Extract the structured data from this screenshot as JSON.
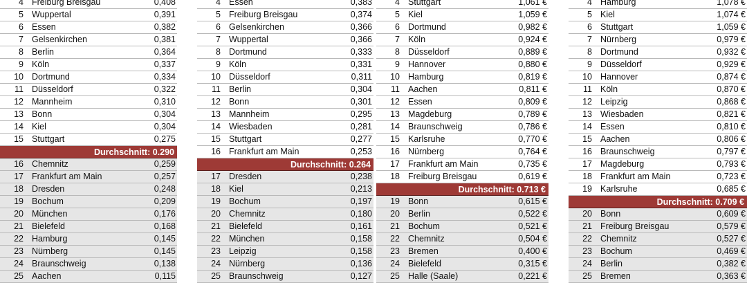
{
  "colors": {
    "average_bar": "#9e3a36",
    "below_average_row": "#e6e6e6",
    "divider": "#b9b9b9"
  },
  "tables": [
    {
      "average_label": "Durchschnitt: 0.290",
      "average_after_index": 11,
      "rows": [
        {
          "rank": "4",
          "name": "Freiburg Breisgau",
          "value": "0,408"
        },
        {
          "rank": "5",
          "name": "Wuppertal",
          "value": "0,391"
        },
        {
          "rank": "6",
          "name": "Essen",
          "value": "0,382"
        },
        {
          "rank": "7",
          "name": "Gelsenkirchen",
          "value": "0,381"
        },
        {
          "rank": "8",
          "name": "Berlin",
          "value": "0,364"
        },
        {
          "rank": "9",
          "name": "Köln",
          "value": "0,337"
        },
        {
          "rank": "10",
          "name": "Dortmund",
          "value": "0,334"
        },
        {
          "rank": "11",
          "name": "Düsseldorf",
          "value": "0,322"
        },
        {
          "rank": "12",
          "name": "Mannheim",
          "value": "0,310"
        },
        {
          "rank": "13",
          "name": "Bonn",
          "value": "0,304"
        },
        {
          "rank": "14",
          "name": "Kiel",
          "value": "0,304"
        },
        {
          "rank": "15",
          "name": "Stuttgart",
          "value": "0,275"
        },
        {
          "rank": "16",
          "name": "Chemnitz",
          "value": "0,259"
        },
        {
          "rank": "17",
          "name": "Frankfurt am Main",
          "value": "0,257"
        },
        {
          "rank": "18",
          "name": "Dresden",
          "value": "0,248"
        },
        {
          "rank": "19",
          "name": "Bochum",
          "value": "0,209"
        },
        {
          "rank": "20",
          "name": "München",
          "value": "0,176"
        },
        {
          "rank": "21",
          "name": "Bielefeld",
          "value": "0,168"
        },
        {
          "rank": "22",
          "name": "Hamburg",
          "value": "0,145"
        },
        {
          "rank": "23",
          "name": "Nürnberg",
          "value": "0,145"
        },
        {
          "rank": "24",
          "name": "Braunschweig",
          "value": "0,138"
        },
        {
          "rank": "25",
          "name": "Aachen",
          "value": "0,115"
        }
      ]
    },
    {
      "average_label": "Durchschnitt: 0.264",
      "average_after_index": 12,
      "rows": [
        {
          "rank": "4",
          "name": "Essen",
          "value": "0,383"
        },
        {
          "rank": "5",
          "name": "Freiburg Breisgau",
          "value": "0,374"
        },
        {
          "rank": "6",
          "name": "Gelsenkirchen",
          "value": "0,366"
        },
        {
          "rank": "7",
          "name": "Wuppertal",
          "value": "0,366"
        },
        {
          "rank": "8",
          "name": "Dortmund",
          "value": "0,333"
        },
        {
          "rank": "9",
          "name": "Köln",
          "value": "0,331"
        },
        {
          "rank": "10",
          "name": "Düsseldorf",
          "value": "0,311"
        },
        {
          "rank": "11",
          "name": "Berlin",
          "value": "0,304"
        },
        {
          "rank": "12",
          "name": "Bonn",
          "value": "0,301"
        },
        {
          "rank": "13",
          "name": "Mannheim",
          "value": "0,295"
        },
        {
          "rank": "14",
          "name": "Wiesbaden",
          "value": "0,281"
        },
        {
          "rank": "15",
          "name": "Stuttgart",
          "value": "0,277"
        },
        {
          "rank": "16",
          "name": "Frankfurt am Main",
          "value": "0,253"
        },
        {
          "rank": "17",
          "name": "Dresden",
          "value": "0,238"
        },
        {
          "rank": "18",
          "name": "Kiel",
          "value": "0,213"
        },
        {
          "rank": "19",
          "name": "Bochum",
          "value": "0,197"
        },
        {
          "rank": "20",
          "name": "Chemnitz",
          "value": "0,180"
        },
        {
          "rank": "21",
          "name": "Bielefeld",
          "value": "0,161"
        },
        {
          "rank": "22",
          "name": "München",
          "value": "0,158"
        },
        {
          "rank": "23",
          "name": "Leipzig",
          "value": "0,158"
        },
        {
          "rank": "24",
          "name": "Nürnberg",
          "value": "0,136"
        },
        {
          "rank": "25",
          "name": "Braunschweig",
          "value": "0,127"
        }
      ]
    },
    {
      "average_label": "Durchschnitt: 0.713 €",
      "average_after_index": 14,
      "rows": [
        {
          "rank": "4",
          "name": "Stuttgart",
          "value": "1,061 €"
        },
        {
          "rank": "5",
          "name": "Kiel",
          "value": "1,059 €"
        },
        {
          "rank": "6",
          "name": "Dortmund",
          "value": "0,982 €"
        },
        {
          "rank": "7",
          "name": "Köln",
          "value": "0,924 €"
        },
        {
          "rank": "8",
          "name": "Düsseldorf",
          "value": "0,889 €"
        },
        {
          "rank": "9",
          "name": "Hannover",
          "value": "0,880 €"
        },
        {
          "rank": "10",
          "name": "Hamburg",
          "value": "0,819 €"
        },
        {
          "rank": "11",
          "name": "Aachen",
          "value": "0,811 €"
        },
        {
          "rank": "12",
          "name": "Essen",
          "value": "0,809 €"
        },
        {
          "rank": "13",
          "name": "Magdeburg",
          "value": "0,789 €"
        },
        {
          "rank": "14",
          "name": "Braunschweig",
          "value": "0,786 €"
        },
        {
          "rank": "15",
          "name": "Karlsruhe",
          "value": "0,770 €"
        },
        {
          "rank": "16",
          "name": "Nürnberg",
          "value": "0,764 €"
        },
        {
          "rank": "17",
          "name": "Frankfurt am Main",
          "value": "0,735 €"
        },
        {
          "rank": "18",
          "name": "Freiburg Breisgau",
          "value": "0,619 €"
        },
        {
          "rank": "19",
          "name": "Bonn",
          "value": "0,615 €"
        },
        {
          "rank": "20",
          "name": "Berlin",
          "value": "0,522 €"
        },
        {
          "rank": "21",
          "name": "Bochum",
          "value": "0,521 €"
        },
        {
          "rank": "22",
          "name": "Chemnitz",
          "value": "0,504 €"
        },
        {
          "rank": "23",
          "name": "Bremen",
          "value": "0,400 €"
        },
        {
          "rank": "24",
          "name": "Bielefeld",
          "value": "0,315 €"
        },
        {
          "rank": "25",
          "name": "Halle (Saale)",
          "value": "0,221 €"
        }
      ]
    },
    {
      "average_label": "Durchschnitt: 0.709 €",
      "average_after_index": 15,
      "rows": [
        {
          "rank": "4",
          "name": "Hamburg",
          "value": "1,078 €"
        },
        {
          "rank": "5",
          "name": "Kiel",
          "value": "1,074 €"
        },
        {
          "rank": "6",
          "name": "Stuttgart",
          "value": "1,059 €"
        },
        {
          "rank": "7",
          "name": "Nürnberg",
          "value": "0,979 €"
        },
        {
          "rank": "8",
          "name": "Dortmund",
          "value": "0,932 €"
        },
        {
          "rank": "9",
          "name": "Düsseldorf",
          "value": "0,929 €"
        },
        {
          "rank": "10",
          "name": "Hannover",
          "value": "0,874 €"
        },
        {
          "rank": "11",
          "name": "Köln",
          "value": "0,870 €"
        },
        {
          "rank": "12",
          "name": "Leipzig",
          "value": "0,868 €"
        },
        {
          "rank": "13",
          "name": "Wiesbaden",
          "value": "0,821 €"
        },
        {
          "rank": "14",
          "name": "Essen",
          "value": "0,810 €"
        },
        {
          "rank": "15",
          "name": "Aachen",
          "value": "0,806 €"
        },
        {
          "rank": "16",
          "name": "Braunschweig",
          "value": "0,797 €"
        },
        {
          "rank": "17",
          "name": "Magdeburg",
          "value": "0,793 €"
        },
        {
          "rank": "18",
          "name": "Frankfurt am Main",
          "value": "0,723 €"
        },
        {
          "rank": "19",
          "name": "Karlsruhe",
          "value": "0,685 €"
        },
        {
          "rank": "20",
          "name": "Bonn",
          "value": "0,609 €"
        },
        {
          "rank": "21",
          "name": "Freiburg Breisgau",
          "value": "0,579 €"
        },
        {
          "rank": "22",
          "name": "Chemnitz",
          "value": "0,527 €"
        },
        {
          "rank": "23",
          "name": "Bochum",
          "value": "0,469 €"
        },
        {
          "rank": "24",
          "name": "Berlin",
          "value": "0,382 €"
        },
        {
          "rank": "25",
          "name": "Bremen",
          "value": "0,363 €"
        }
      ]
    }
  ]
}
